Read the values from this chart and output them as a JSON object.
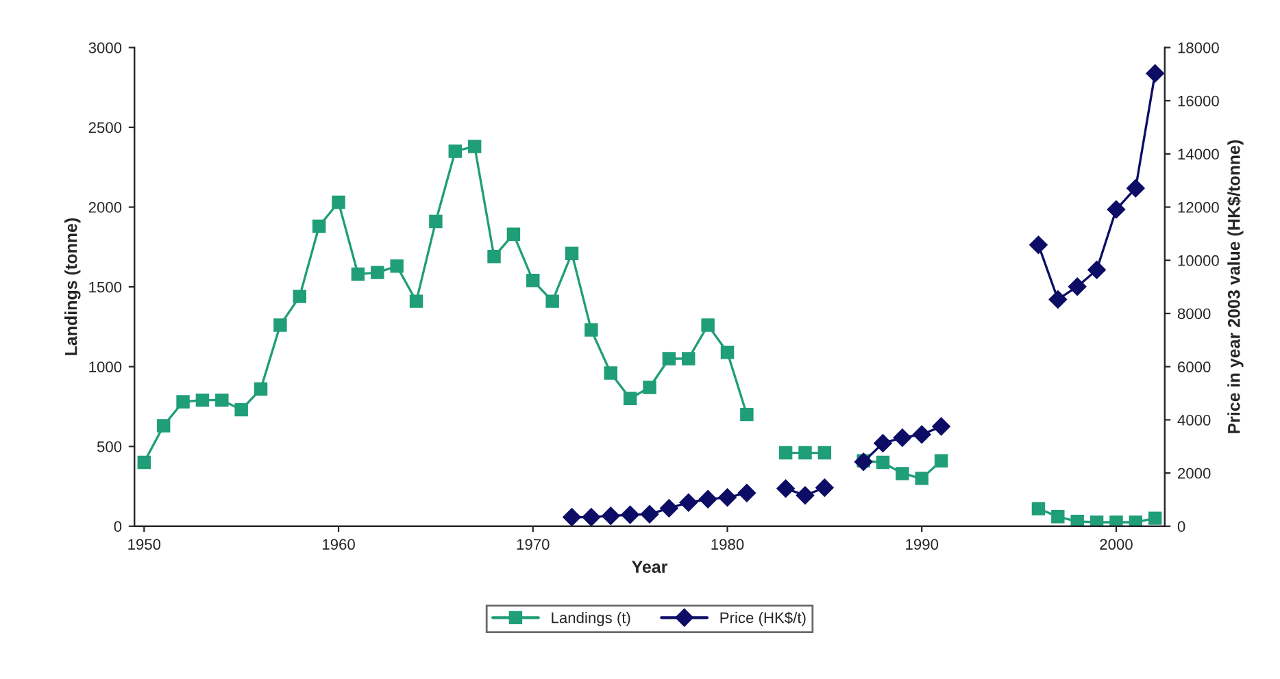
{
  "chart_data": {
    "type": "line",
    "xlabel": "Year",
    "ylabel": "Landings (tonne)",
    "y2label": "Price in year 2003 value (HK$/tonne)",
    "x": [
      1950,
      1951,
      1952,
      1953,
      1954,
      1955,
      1956,
      1957,
      1958,
      1959,
      1960,
      1961,
      1962,
      1963,
      1964,
      1965,
      1966,
      1967,
      1968,
      1969,
      1970,
      1971,
      1972,
      1973,
      1974,
      1975,
      1976,
      1977,
      1978,
      1979,
      1980,
      1981,
      1982,
      1983,
      1984,
      1985,
      1986,
      1987,
      1988,
      1989,
      1990,
      1991,
      1992,
      1993,
      1994,
      1995,
      1996,
      1997,
      1998,
      1999,
      2000,
      2001,
      2002
    ],
    "series": [
      {
        "name": "Landings (t)",
        "color": "#1f9e78",
        "marker": "square",
        "values": [
          400,
          630,
          780,
          790,
          790,
          730,
          860,
          1260,
          1440,
          1880,
          2030,
          1580,
          1590,
          1630,
          1410,
          1910,
          2350,
          2380,
          1690,
          1830,
          1540,
          1410,
          1710,
          1230,
          960,
          800,
          870,
          1050,
          1050,
          1260,
          1090,
          700,
          null,
          460,
          460,
          460,
          null,
          410,
          400,
          330,
          300,
          410,
          null,
          null,
          null,
          null,
          110,
          60,
          30,
          25,
          25,
          25,
          50
        ]
      },
      {
        "name": "Price (HK$/t)",
        "color": "#0d0d66",
        "marker": "diamond",
        "axis": "y2",
        "values": [
          null,
          null,
          null,
          null,
          null,
          null,
          null,
          null,
          null,
          null,
          null,
          null,
          null,
          null,
          null,
          null,
          null,
          null,
          null,
          null,
          null,
          null,
          340,
          340,
          390,
          430,
          450,
          680,
          890,
          1020,
          1080,
          1250,
          null,
          1420,
          1160,
          1450,
          null,
          2420,
          3120,
          3330,
          3450,
          3750,
          null,
          null,
          null,
          null,
          10580,
          8530,
          9010,
          9640,
          11910,
          12710,
          17030
        ]
      }
    ],
    "xlim": [
      1949.5,
      2002.5
    ],
    "xticks": [
      1950,
      1960,
      1970,
      1980,
      1990,
      2000
    ],
    "ylim": [
      0,
      3000
    ],
    "yticks": [
      0,
      500,
      1000,
      1500,
      2000,
      2500,
      3000
    ],
    "y2lim": [
      0,
      18000
    ],
    "y2ticks": [
      0,
      2000,
      4000,
      6000,
      8000,
      10000,
      12000,
      14000,
      16000,
      18000
    ],
    "grid": false,
    "legend": "bottom"
  }
}
